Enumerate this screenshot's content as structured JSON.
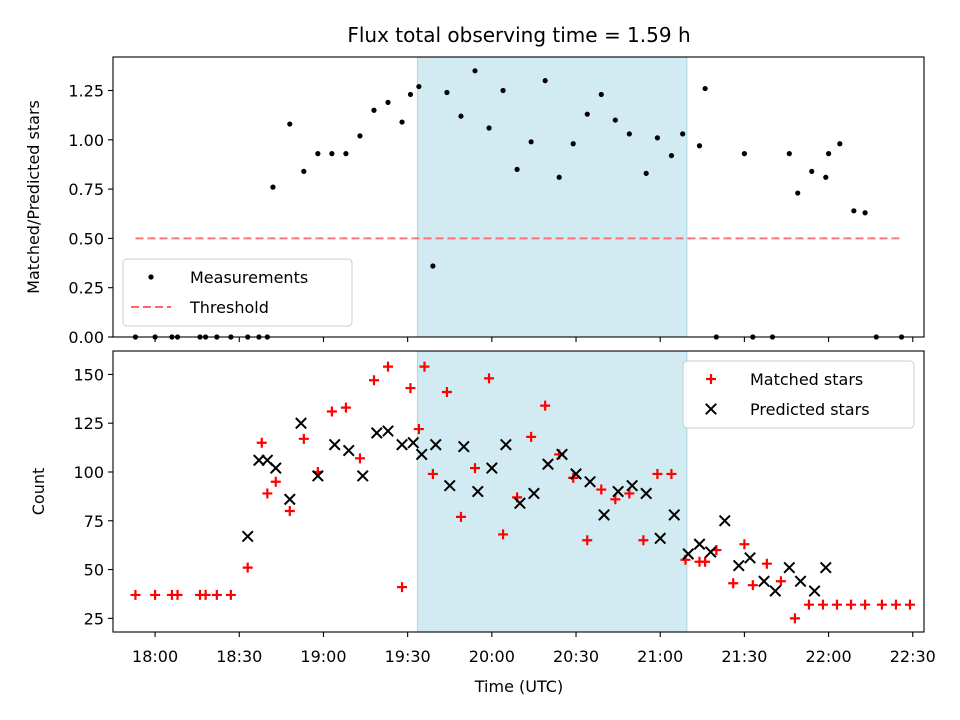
{
  "figure": {
    "title": "Flux total observing time = 1.59 h",
    "xlabel": "Time (UTC)",
    "x_ticks": [
      "18:00",
      "18:30",
      "19:00",
      "19:30",
      "20:00",
      "20:30",
      "21:00",
      "21:30",
      "22:00",
      "22:30"
    ],
    "x_tick_minutes": [
      1080,
      1110,
      1140,
      1170,
      1200,
      1230,
      1260,
      1290,
      1320,
      1350
    ],
    "x_range_minutes": [
      1065,
      1354
    ],
    "shaded_interval_minutes": [
      1173.5,
      1269.5
    ],
    "shade_color": "#add8e6"
  },
  "chart_data": [
    {
      "type": "scatter",
      "ylabel": "Matched/Predicted stars",
      "ylim": [
        0.0,
        1.42
      ],
      "y_ticks": [
        "0.00",
        "0.25",
        "0.50",
        "0.75",
        "1.00",
        "1.25"
      ],
      "y_tick_values": [
        0.0,
        0.25,
        0.5,
        0.75,
        1.0,
        1.25
      ],
      "legend_position": "lower-left",
      "series": [
        {
          "name": "Measurements",
          "marker": "dot",
          "color": "#000000",
          "x": [
            1073,
            1080,
            1086,
            1088,
            1096,
            1098,
            1102,
            1107,
            1113,
            1117,
            1120,
            1122,
            1128,
            1133,
            1138,
            1143,
            1148,
            1153,
            1158,
            1163,
            1168,
            1171,
            1174,
            1179,
            1184,
            1189,
            1194,
            1199,
            1204,
            1209,
            1214,
            1219,
            1224,
            1229,
            1234,
            1239,
            1244,
            1249,
            1255,
            1259,
            1264,
            1268,
            1274,
            1276,
            1280,
            1290,
            1293,
            1300,
            1306,
            1309,
            1314,
            1319,
            1320,
            1324,
            1329,
            1333,
            1337,
            1346
          ],
          "y": [
            0.0,
            0.0,
            0.0,
            0.0,
            0.0,
            0.0,
            0.0,
            0.0,
            0.0,
            0.0,
            0.0,
            0.76,
            1.08,
            0.84,
            0.93,
            0.93,
            0.93,
            1.02,
            1.15,
            1.19,
            1.09,
            1.23,
            1.27,
            0.36,
            1.24,
            1.12,
            1.35,
            1.06,
            1.25,
            0.85,
            0.99,
            1.3,
            0.81,
            0.98,
            1.13,
            1.23,
            1.1,
            1.03,
            0.83,
            1.01,
            0.92,
            1.03,
            0.97,
            1.26,
            0.0,
            0.93,
            0.0,
            0.0,
            0.93,
            0.73,
            0.84,
            0.81,
            0.93,
            0.98,
            0.64,
            0.63,
            0.0,
            0.0
          ]
        },
        {
          "name": "Threshold",
          "style": "dashed",
          "color": "#ff6666",
          "x": [
            1073,
            1346
          ],
          "y": [
            0.5,
            0.5
          ]
        }
      ]
    },
    {
      "type": "scatter",
      "ylabel": "Count",
      "ylim": [
        18,
        162
      ],
      "y_ticks": [
        "25",
        "50",
        "75",
        "100",
        "125",
        "150"
      ],
      "y_tick_values": [
        25,
        50,
        75,
        100,
        125,
        150
      ],
      "legend_position": "upper-right",
      "series": [
        {
          "name": "Matched stars",
          "marker": "plus",
          "color": "#ff0000",
          "x": [
            1073,
            1080,
            1086,
            1088,
            1096,
            1098,
            1102,
            1107,
            1113,
            1118,
            1120,
            1123,
            1128,
            1133,
            1138,
            1143,
            1148,
            1153,
            1158,
            1163,
            1168,
            1171,
            1174,
            1176,
            1179,
            1184,
            1189,
            1194,
            1199,
            1204,
            1209,
            1214,
            1219,
            1224,
            1229,
            1234,
            1239,
            1244,
            1249,
            1254,
            1259,
            1264,
            1269,
            1274,
            1276,
            1280,
            1286,
            1290,
            1293,
            1298,
            1303,
            1308,
            1313,
            1318,
            1323,
            1328,
            1333,
            1339,
            1344,
            1349
          ],
          "y": [
            37,
            37,
            37,
            37,
            37,
            37,
            37,
            37,
            51,
            115,
            89,
            95,
            80,
            117,
            100,
            131,
            133,
            107,
            147,
            154,
            41,
            143,
            122,
            154,
            99,
            141,
            77,
            102,
            148,
            68,
            87,
            118,
            134,
            109,
            97,
            65,
            91,
            86,
            89,
            65,
            99,
            99,
            55,
            54,
            54,
            60,
            43,
            63,
            42,
            53,
            44,
            25,
            32,
            32,
            32,
            32,
            32,
            32,
            32,
            32
          ]
        },
        {
          "name": "Predicted stars",
          "marker": "x",
          "color": "#000000",
          "x": [
            1113,
            1117,
            1120,
            1123,
            1128,
            1132,
            1138,
            1144,
            1149,
            1154,
            1159,
            1163,
            1168,
            1172,
            1175,
            1180,
            1185,
            1190,
            1195,
            1200,
            1205,
            1210,
            1215,
            1220,
            1225,
            1230,
            1235,
            1240,
            1245,
            1250,
            1255,
            1260,
            1265,
            1270,
            1274,
            1278,
            1283,
            1288,
            1292,
            1297,
            1301,
            1306,
            1310,
            1315,
            1319
          ],
          "y": [
            67,
            106,
            106,
            102,
            86,
            125,
            98,
            114,
            111,
            98,
            120,
            121,
            114,
            115,
            109,
            114,
            93,
            113,
            90,
            102,
            114,
            84,
            89,
            104,
            109,
            99,
            95,
            78,
            90,
            93,
            89,
            66,
            78,
            58,
            63,
            59,
            75,
            52,
            56,
            44,
            39,
            51,
            44,
            39,
            51
          ]
        }
      ]
    }
  ]
}
